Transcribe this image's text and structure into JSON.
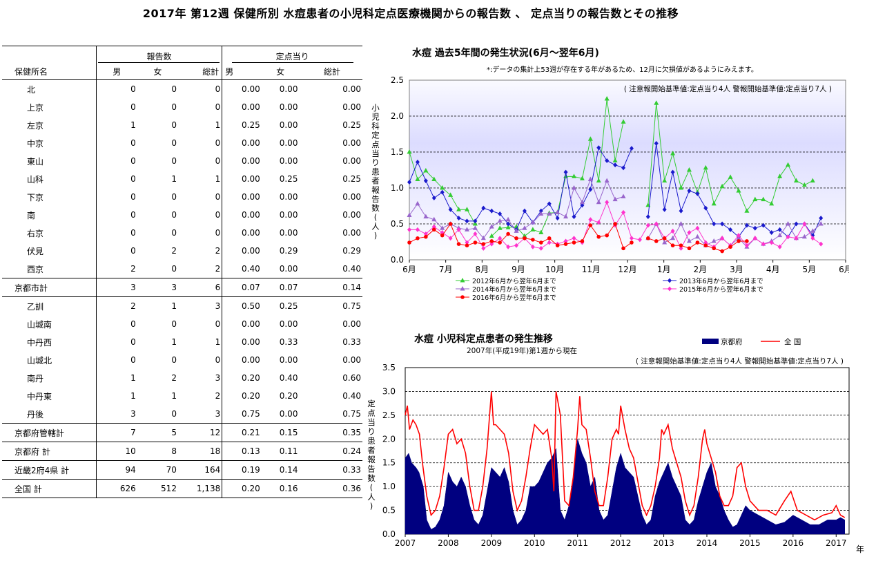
{
  "title": "2017年 第12週 保健所別 水痘患者の小児科定点医療機関からの報告数 、 定点当りの報告数とその推移",
  "table": {
    "group_headers": [
      "報告数",
      "定点当り"
    ],
    "col_headers": [
      "保健所名",
      "男",
      "女",
      "総計",
      "男",
      "女",
      "総計"
    ],
    "rows": [
      {
        "name": "北",
        "cells": [
          "0",
          "0",
          "0",
          "0.00",
          "0.00",
          "0.00"
        ],
        "type": "item"
      },
      {
        "name": "上京",
        "cells": [
          "0",
          "0",
          "0",
          "0.00",
          "0.00",
          "0.00"
        ],
        "type": "item"
      },
      {
        "name": "左京",
        "cells": [
          "1",
          "0",
          "1",
          "0.25",
          "0.00",
          "0.25"
        ],
        "type": "item"
      },
      {
        "name": "中京",
        "cells": [
          "0",
          "0",
          "0",
          "0.00",
          "0.00",
          "0.00"
        ],
        "type": "item"
      },
      {
        "name": "東山",
        "cells": [
          "0",
          "0",
          "0",
          "0.00",
          "0.00",
          "0.00"
        ],
        "type": "item"
      },
      {
        "name": "山科",
        "cells": [
          "0",
          "1",
          "1",
          "0.00",
          "0.25",
          "0.25"
        ],
        "type": "item"
      },
      {
        "name": "下京",
        "cells": [
          "0",
          "0",
          "0",
          "0.00",
          "0.00",
          "0.00"
        ],
        "type": "item"
      },
      {
        "name": "南",
        "cells": [
          "0",
          "0",
          "0",
          "0.00",
          "0.00",
          "0.00"
        ],
        "type": "item"
      },
      {
        "name": "右京",
        "cells": [
          "0",
          "0",
          "0",
          "0.00",
          "0.00",
          "0.00"
        ],
        "type": "item"
      },
      {
        "name": "伏見",
        "cells": [
          "0",
          "2",
          "2",
          "0.00",
          "0.29",
          "0.29"
        ],
        "type": "item"
      },
      {
        "name": "西京",
        "cells": [
          "2",
          "0",
          "2",
          "0.40",
          "0.00",
          "0.40"
        ],
        "type": "item"
      },
      {
        "name": "京都市計",
        "cells": [
          "3",
          "3",
          "6",
          "0.07",
          "0.07",
          "0.14"
        ],
        "type": "subtotal"
      },
      {
        "name": "乙訓",
        "cells": [
          "2",
          "1",
          "3",
          "0.50",
          "0.25",
          "0.75"
        ],
        "type": "item"
      },
      {
        "name": "山城南",
        "cells": [
          "0",
          "0",
          "0",
          "0.00",
          "0.00",
          "0.00"
        ],
        "type": "item"
      },
      {
        "name": "中丹西",
        "cells": [
          "0",
          "1",
          "1",
          "0.00",
          "0.33",
          "0.33"
        ],
        "type": "item"
      },
      {
        "name": "山城北",
        "cells": [
          "0",
          "0",
          "0",
          "0.00",
          "0.00",
          "0.00"
        ],
        "type": "item"
      },
      {
        "name": "南丹",
        "cells": [
          "1",
          "2",
          "3",
          "0.20",
          "0.40",
          "0.60"
        ],
        "type": "item"
      },
      {
        "name": "中丹東",
        "cells": [
          "1",
          "1",
          "2",
          "0.20",
          "0.20",
          "0.40"
        ],
        "type": "item"
      },
      {
        "name": "丹後",
        "cells": [
          "3",
          "0",
          "3",
          "0.75",
          "0.00",
          "0.75"
        ],
        "type": "item"
      },
      {
        "name": "京都府管轄計",
        "cells": [
          "7",
          "5",
          "12",
          "0.21",
          "0.15",
          "0.35"
        ],
        "type": "subtotal"
      },
      {
        "name": "京都府 計",
        "cells": [
          "10",
          "8",
          "18",
          "0.13",
          "0.11",
          "0.24"
        ],
        "type": "total"
      },
      {
        "name": "近畿2府4県 計",
        "cells": [
          "94",
          "70",
          "164",
          "0.19",
          "0.14",
          "0.33"
        ],
        "type": "total"
      },
      {
        "name": "全国 計",
        "cells": [
          "626",
          "512",
          "1,138",
          "0.20",
          "0.16",
          "0.36"
        ],
        "type": "total"
      }
    ]
  },
  "chart1": {
    "title": "水痘 過去5年間の発生状況(6月～翌年6月)",
    "note": "*:データの集計上53週が存在する年があるため、12月に欠損値があるようにみえます。",
    "threshold_note": "( 注意報開始基準値:定点当り4人 警報開始基準値:定点当り7人 )",
    "ylabel": "小児科定点当り患者報告数(人)",
    "yticks": [
      "0.0",
      "0.5",
      "1.0",
      "1.5",
      "2.0",
      "2.5"
    ],
    "xticks": [
      "6月",
      "7月",
      "8月",
      "9月",
      "10月",
      "11月",
      "12月",
      "1月",
      "2月",
      "3月",
      "4月",
      "5月",
      "6月"
    ],
    "legend": [
      "2012年6月から翌年6月まで",
      "2013年6月から翌年6月まで",
      "2014年6月から翌年6月まで",
      "2015年6月から翌年6月まで",
      "2016年6月から翌年6月まで"
    ]
  },
  "chart2": {
    "title": "水痘 小児科定点患者の発生推移",
    "subtitle": "2007年(平成19年)第1週から現在",
    "threshold_note": "( 注意報開始基準値:定点当り4人 警報開始基準値:定点当り7人 )",
    "ylabel": "定点当り患者報告数(人)",
    "xunit": "年",
    "yticks": [
      "0.0",
      "0.5",
      "1.0",
      "1.5",
      "2.0",
      "2.5",
      "3.0",
      "3.5"
    ],
    "xticks": [
      "2007",
      "2008",
      "2009",
      "2010",
      "2011",
      "2012",
      "2013",
      "2014",
      "2015",
      "2016",
      "2017"
    ],
    "legend": [
      "京都府",
      "全 国"
    ]
  },
  "colors": {
    "green": "#33cc33",
    "blue": "#1a1acc",
    "purple": "#9966cc",
    "magenta": "#ff33cc",
    "red": "#ff0000",
    "navy": "#000080",
    "plot_bg_top": "#dcdcff"
  },
  "chart_data": [
    {
      "type": "line",
      "title": "水痘 過去5年間の発生状況(6月～翌年6月)",
      "ylabel": "小児科定点当り患者報告数(人)",
      "ylim": [
        0,
        2.5
      ],
      "x_start_week": 22,
      "x_weeks": 53,
      "series": [
        {
          "name": "2012年6月から翌年6月まで",
          "color": "#33cc33",
          "marker": "triangle",
          "values": [
            1.5,
            1.12,
            1.24,
            1.12,
            1.0,
            0.9,
            0.7,
            0.7,
            0.5,
            null,
            0.33,
            0.44,
            0.45,
            0.46,
            0.33,
            0.42,
            0.38,
            0.65,
            0.66,
            1.16,
            1.16,
            1.13,
            1.68,
            1.1,
            2.24,
            1.38,
            1.92,
            null,
            null,
            0.76,
            2.18,
            1.1,
            1.48,
            1.0,
            1.25,
            0.94,
            1.28,
            0.78,
            1.02,
            1.15,
            0.96,
            0.68,
            0.84,
            0.84,
            0.78,
            1.16,
            1.32,
            1.1,
            1.04,
            1.1
          ]
        },
        {
          "name": "2013年6月から翌年6月まで",
          "color": "#1a1acc",
          "marker": "diamond",
          "values": [
            1.08,
            1.36,
            1.1,
            0.86,
            0.94,
            0.7,
            0.58,
            0.54,
            0.54,
            0.72,
            0.68,
            0.64,
            0.5,
            0.42,
            0.68,
            0.52,
            0.68,
            0.78,
            0.58,
            1.22,
            0.6,
            0.76,
            0.98,
            1.56,
            1.38,
            1.32,
            1.28,
            1.55,
            null,
            0.6,
            1.62,
            0.7,
            1.22,
            0.68,
            0.96,
            0.92,
            0.72,
            0.5,
            0.5,
            0.42,
            0.32,
            0.48,
            0.44,
            0.48,
            0.38,
            0.42,
            0.32,
            0.5,
            0.5,
            0.34,
            0.58
          ]
        },
        {
          "name": "2014年6月から翌年6月まで",
          "color": "#9966cc",
          "marker": "triangle",
          "values": [
            0.62,
            0.78,
            0.6,
            0.56,
            0.44,
            0.5,
            0.44,
            0.42,
            0.44,
            0.3,
            0.46,
            0.54,
            0.56,
            0.4,
            0.44,
            0.52,
            0.64,
            0.64,
            0.66,
            0.6,
            1.0,
            0.8,
            1.12,
            0.8,
            1.1,
            0.84,
            0.88,
            null,
            null,
            0.3,
            0.5,
            0.24,
            0.3,
            0.5,
            0.26,
            0.32,
            0.2,
            0.26,
            0.3,
            0.2,
            0.3,
            0.18,
            0.3,
            0.22,
            0.26,
            0.34,
            0.5,
            0.3,
            0.32,
            0.4,
            0.5
          ]
        },
        {
          "name": "2015年6月から翌年6月まで",
          "color": "#ff33cc",
          "marker": "diamond",
          "values": [
            0.42,
            0.42,
            0.36,
            0.46,
            0.38,
            0.3,
            0.42,
            0.24,
            0.36,
            0.16,
            0.22,
            0.3,
            0.18,
            0.2,
            0.3,
            0.18,
            0.16,
            0.24,
            0.22,
            0.26,
            0.3,
            0.24,
            0.56,
            0.52,
            0.8,
            0.48,
            0.66,
            0.3,
            0.28,
            0.48,
            0.5,
            0.3,
            0.4,
            0.16,
            0.38,
            0.44,
            0.24,
            0.18,
            0.3,
            0.2,
            0.34,
            0.2,
            0.3,
            0.22,
            0.24,
            0.18,
            0.32,
            0.3,
            0.5,
            0.3,
            0.22
          ]
        },
        {
          "name": "2016年6月から翌年6月まで",
          "color": "#ff0000",
          "marker": "circle",
          "values": [
            0.24,
            0.3,
            0.32,
            0.42,
            0.34,
            0.5,
            0.22,
            0.2,
            0.24,
            0.22,
            0.26,
            0.24,
            0.36,
            0.3,
            0.3,
            0.28,
            0.24,
            0.3,
            0.2,
            0.22,
            0.24,
            0.26,
            0.48,
            0.32,
            0.34,
            0.5,
            0.16,
            0.24,
            null,
            0.3,
            0.26,
            0.3,
            0.2,
            0.2,
            0.16,
            0.24,
            0.2,
            0.16,
            0.12,
            0.18,
            0.26,
            0.26
          ]
        }
      ]
    },
    {
      "type": "area",
      "title": "水痘 小児科定点患者の発生推移",
      "ylabel": "定点当り患者報告数(人)",
      "ylim": [
        0,
        3.5
      ],
      "xlim": [
        2007,
        2017.3
      ],
      "series": [
        {
          "name": "京都府",
          "color": "#000080",
          "kind": "area",
          "x": [
            2007.0,
            2007.08,
            2007.15,
            2007.25,
            2007.32,
            2007.42,
            2007.5,
            2007.6,
            2007.7,
            2007.8,
            2007.9,
            2008.0,
            2008.1,
            2008.2,
            2008.3,
            2008.4,
            2008.5,
            2008.6,
            2008.7,
            2008.8,
            2008.9,
            2009.0,
            2009.1,
            2009.2,
            2009.3,
            2009.4,
            2009.5,
            2009.6,
            2009.7,
            2009.8,
            2009.9,
            2010.0,
            2010.1,
            2010.2,
            2010.3,
            2010.4,
            2010.5,
            2010.6,
            2010.7,
            2010.8,
            2010.9,
            2011.0,
            2011.1,
            2011.2,
            2011.3,
            2011.4,
            2011.5,
            2011.6,
            2011.7,
            2011.8,
            2011.9,
            2012.0,
            2012.1,
            2012.2,
            2012.3,
            2012.4,
            2012.5,
            2012.6,
            2012.7,
            2012.8,
            2012.9,
            2013.0,
            2013.1,
            2013.2,
            2013.3,
            2013.4,
            2013.5,
            2013.6,
            2013.7,
            2013.8,
            2013.9,
            2014.0,
            2014.1,
            2014.2,
            2014.3,
            2014.4,
            2014.5,
            2014.6,
            2014.7,
            2014.8,
            2014.9,
            2015.0,
            2015.2,
            2015.4,
            2015.6,
            2015.8,
            2016.0,
            2016.2,
            2016.4,
            2016.6,
            2016.8,
            2017.0,
            2017.1,
            2017.2
          ],
          "values": [
            1.6,
            1.7,
            1.5,
            1.4,
            1.3,
            1.0,
            0.3,
            0.1,
            0.15,
            0.3,
            0.6,
            1.3,
            1.1,
            1.0,
            1.2,
            1.0,
            0.6,
            0.3,
            0.2,
            0.4,
            0.9,
            1.4,
            1.3,
            1.2,
            1.4,
            1.1,
            0.5,
            0.2,
            0.3,
            0.5,
            1.0,
            1.0,
            1.1,
            1.3,
            1.5,
            1.6,
            1.8,
            0.5,
            0.3,
            0.6,
            1.2,
            2.0,
            1.7,
            1.5,
            1.0,
            1.2,
            0.5,
            0.3,
            0.4,
            0.9,
            1.4,
            1.7,
            1.4,
            1.3,
            1.2,
            0.8,
            0.4,
            0.2,
            0.3,
            0.8,
            1.1,
            1.3,
            1.5,
            1.2,
            1.0,
            0.8,
            0.3,
            0.2,
            0.3,
            0.7,
            1.0,
            1.3,
            1.5,
            1.0,
            0.8,
            0.5,
            0.3,
            0.15,
            0.2,
            0.4,
            0.6,
            0.5,
            0.4,
            0.3,
            0.2,
            0.25,
            0.4,
            0.3,
            0.2,
            0.2,
            0.3,
            0.3,
            0.35,
            0.3
          ]
        },
        {
          "name": "全 国",
          "color": "#ff0000",
          "kind": "line",
          "x": [
            2007.0,
            2007.05,
            2007.1,
            2007.18,
            2007.25,
            2007.33,
            2007.4,
            2007.5,
            2007.6,
            2007.7,
            2007.8,
            2007.9,
            2008.0,
            2008.1,
            2008.2,
            2008.3,
            2008.4,
            2008.5,
            2008.6,
            2008.7,
            2008.8,
            2008.9,
            2008.95,
            2009.0,
            2009.05,
            2009.1,
            2009.2,
            2009.3,
            2009.4,
            2009.5,
            2009.6,
            2009.7,
            2009.8,
            2009.9,
            2010.0,
            2010.1,
            2010.2,
            2010.3,
            2010.4,
            2010.45,
            2010.5,
            2010.6,
            2010.7,
            2010.8,
            2010.9,
            2011.0,
            2011.05,
            2011.1,
            2011.2,
            2011.3,
            2011.4,
            2011.5,
            2011.6,
            2011.7,
            2011.8,
            2011.9,
            2011.95,
            2012.0,
            2012.1,
            2012.2,
            2012.3,
            2012.4,
            2012.5,
            2012.6,
            2012.7,
            2012.8,
            2012.9,
            2012.95,
            2013.0,
            2013.1,
            2013.2,
            2013.3,
            2013.4,
            2013.5,
            2013.6,
            2013.7,
            2013.8,
            2013.9,
            2013.95,
            2014.0,
            2014.1,
            2014.2,
            2014.3,
            2014.4,
            2014.5,
            2014.6,
            2014.7,
            2014.8,
            2014.9,
            2015.0,
            2015.2,
            2015.4,
            2015.6,
            2015.8,
            2015.95,
            2016.1,
            2016.3,
            2016.5,
            2016.7,
            2016.9,
            2017.0,
            2017.1,
            2017.2
          ],
          "values": [
            2.5,
            2.7,
            2.2,
            2.4,
            2.3,
            2.1,
            1.5,
            0.8,
            0.4,
            0.5,
            0.8,
            1.4,
            2.1,
            2.2,
            1.9,
            2.0,
            1.7,
            1.0,
            0.5,
            0.5,
            1.0,
            1.8,
            2.4,
            3.0,
            2.3,
            2.3,
            2.2,
            2.1,
            1.7,
            0.9,
            0.5,
            0.7,
            1.2,
            1.8,
            2.3,
            2.2,
            2.1,
            2.2,
            1.6,
            0.9,
            3.0,
            2.5,
            0.7,
            0.6,
            1.2,
            2.2,
            2.9,
            2.3,
            2.2,
            1.6,
            0.9,
            0.6,
            0.6,
            1.2,
            2.0,
            2.2,
            2.1,
            2.7,
            2.2,
            1.8,
            1.6,
            1.1,
            0.6,
            0.4,
            0.6,
            1.0,
            1.6,
            2.2,
            2.1,
            2.3,
            1.8,
            1.5,
            1.2,
            0.7,
            0.4,
            0.6,
            1.2,
            2.0,
            2.2,
            1.9,
            1.6,
            1.3,
            0.8,
            0.6,
            0.6,
            0.8,
            1.4,
            1.5,
            1.0,
            0.7,
            0.5,
            0.5,
            0.4,
            0.7,
            0.9,
            0.5,
            0.4,
            0.3,
            0.4,
            0.45,
            0.6,
            0.4,
            0.35
          ]
        }
      ]
    }
  ]
}
